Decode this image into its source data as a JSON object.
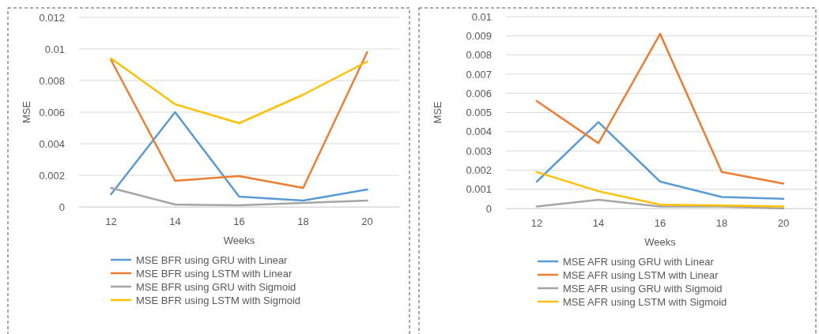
{
  "chart_data": [
    {
      "type": "line",
      "xlabel": "Weeks",
      "ylabel": "MSE",
      "categories": [
        "12",
        "14",
        "16",
        "18",
        "20"
      ],
      "ylim": [
        0,
        0.012
      ],
      "yticks": [
        0,
        0.002,
        0.004,
        0.006,
        0.008,
        0.01,
        0.012
      ],
      "grid": "y",
      "legend": "bottom",
      "marker": "none",
      "series": [
        {
          "name": "MSE BFR using GRU with Linear",
          "color": "#5b9bd5",
          "values": [
            0.0008,
            0.006,
            0.00065,
            0.0004,
            0.0011
          ]
        },
        {
          "name": "MSE BFR using LSTM with Linear",
          "color": "#ed7d31",
          "values": [
            0.0093,
            0.00165,
            0.00195,
            0.0012,
            0.0098
          ]
        },
        {
          "name": "MSE BFR using GRU with Sigmoid",
          "color": "#a5a5a5",
          "values": [
            0.0012,
            0.00015,
            0.0001,
            0.00025,
            0.0004
          ]
        },
        {
          "name": "MSE BFR using LSTM with Sigmoid",
          "color": "#ffc000",
          "values": [
            0.0094,
            0.0065,
            0.0053,
            0.0071,
            0.0092
          ]
        }
      ]
    },
    {
      "type": "line",
      "xlabel": "Weeks",
      "ylabel": "MSE",
      "categories": [
        "12",
        "14",
        "16",
        "18",
        "20"
      ],
      "ylim": [
        0,
        0.01
      ],
      "yticks": [
        0,
        0.001,
        0.002,
        0.003,
        0.004,
        0.005,
        0.006,
        0.007,
        0.008,
        0.009,
        0.01
      ],
      "grid": "y",
      "legend": "bottom",
      "marker": "none",
      "series": [
        {
          "name": "MSE AFR using GRU with Linear",
          "color": "#5b9bd5",
          "values": [
            0.0014,
            0.0045,
            0.0014,
            0.0006,
            0.0005
          ]
        },
        {
          "name": "MSE AFR using LSTM with Linear",
          "color": "#ed7d31",
          "values": [
            0.0056,
            0.0034,
            0.0091,
            0.0019,
            0.0013
          ]
        },
        {
          "name": "MSE AFR using GRU with Sigmoid",
          "color": "#a5a5a5",
          "values": [
            0.0001,
            0.00045,
            0.0001,
            0.0001,
            0
          ]
        },
        {
          "name": "MSE AFR using LSTM with Sigmoid",
          "color": "#ffc000",
          "values": [
            0.0019,
            0.0009,
            0.0002,
            0.00015,
            0.0001
          ]
        }
      ]
    }
  ]
}
